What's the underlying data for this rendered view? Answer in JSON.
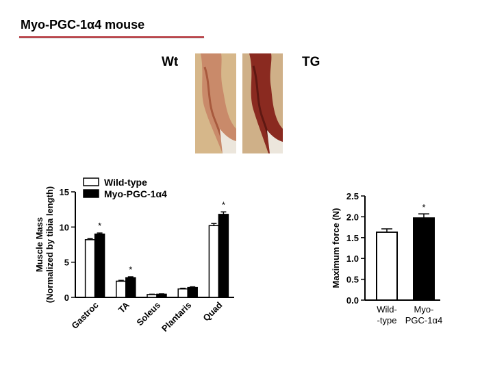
{
  "slide": {
    "title": "Myo-PGC-1α4 mouse",
    "accent_color": "#b0232a",
    "photo_labels": {
      "left": "Wt",
      "right": "TG"
    },
    "photos": [
      {
        "name": "wild-type-leg-photo",
        "tone": "#c98a6a"
      },
      {
        "name": "transgenic-leg-photo",
        "tone": "#8a2a20"
      }
    ]
  },
  "chart_data": [
    {
      "type": "bar",
      "title": "",
      "ylabel_line1": "Muscle Mass",
      "ylabel_line2": "(Normalized by tibia length)",
      "ylim": [
        0,
        15
      ],
      "yticks": [
        0,
        5,
        10,
        15
      ],
      "categories": [
        "Gastroc",
        "TA",
        "Soleus",
        "Plantaris",
        "Quad"
      ],
      "legend": {
        "placement": "top-left"
      },
      "series": [
        {
          "name": "Wild-type",
          "fill": "#ffffff",
          "values": [
            8.2,
            2.3,
            0.4,
            1.2,
            10.2
          ],
          "errors": [
            0.15,
            0.12,
            0.05,
            0.1,
            0.3
          ]
        },
        {
          "name": "Myo-PGC-1α4",
          "fill": "#000000",
          "values": [
            9.0,
            2.8,
            0.45,
            1.4,
            11.8
          ],
          "errors": [
            0.15,
            0.12,
            0.05,
            0.1,
            0.35
          ]
        }
      ],
      "significance": [
        "*",
        "*",
        "",
        "",
        "*"
      ]
    },
    {
      "type": "bar",
      "title": "",
      "ylabel": "Maximum force (N)",
      "ylim": [
        0,
        2.5
      ],
      "yticks": [
        "0.0",
        "0.5",
        "1.0",
        "1.5",
        "2.0",
        "2.5"
      ],
      "categories": [
        {
          "line1": "Wild-",
          "line2": "-type"
        },
        {
          "line1": "Myo-",
          "line2": "PGC-1α4"
        }
      ],
      "values": [
        1.63,
        1.97
      ],
      "errors": [
        0.08,
        0.1
      ],
      "fills": [
        "#ffffff",
        "#000000"
      ],
      "significance": [
        "",
        "*"
      ]
    }
  ]
}
